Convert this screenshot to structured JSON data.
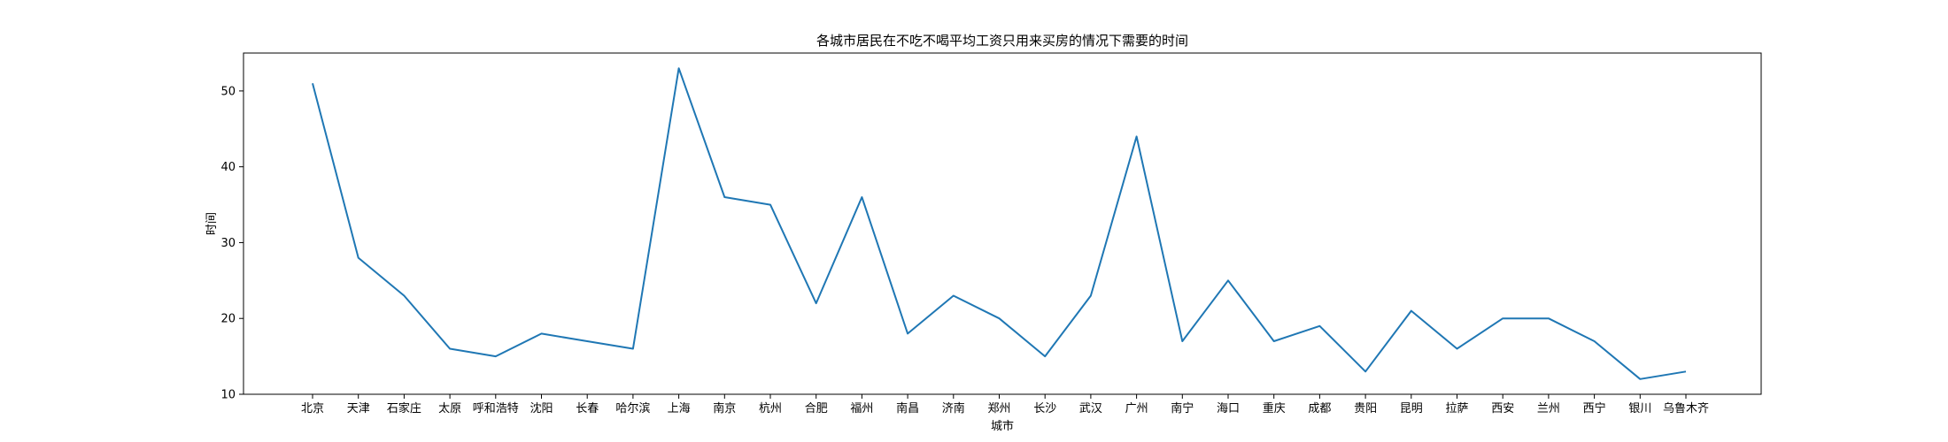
{
  "chart_data": {
    "type": "line",
    "title": "各城市居民在不吃不喝平均工资只用来买房的情况下需要的时间",
    "xlabel": "城市",
    "ylabel": "时间",
    "categories": [
      "北京",
      "天津",
      "石家庄",
      "太原",
      "呼和浩特",
      "沈阳",
      "长春",
      "哈尔滨",
      "上海",
      "南京",
      "杭州",
      "合肥",
      "福州",
      "南昌",
      "济南",
      "郑州",
      "长沙",
      "武汉",
      "广州",
      "南宁",
      "海口",
      "重庆",
      "成都",
      "贵阳",
      "昆明",
      "拉萨",
      "西安",
      "兰州",
      "西宁",
      "银川",
      "乌鲁木齐"
    ],
    "series": [
      {
        "values": [
          51,
          28,
          23,
          16,
          15,
          18,
          17,
          16,
          53,
          36,
          35,
          22,
          36,
          18,
          23,
          20,
          15,
          23,
          44,
          17,
          25,
          17,
          19,
          13,
          21,
          16,
          20,
          20,
          17,
          12,
          13
        ],
        "color": "#1f77b4"
      }
    ],
    "ylim": [
      10,
      55
    ],
    "yticks": [
      10,
      20,
      30,
      40,
      50
    ],
    "grid": false,
    "legend": "none"
  }
}
